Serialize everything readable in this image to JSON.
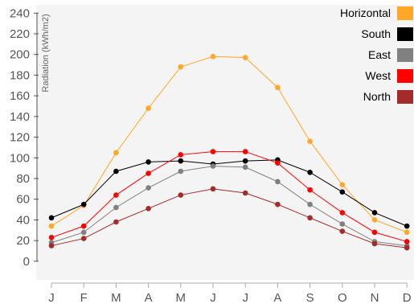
{
  "chart_data": {
    "type": "line",
    "ylabel": "Radiation (kWh/m2)",
    "xlabel": "",
    "categories": [
      "J",
      "F",
      "M",
      "A",
      "M",
      "J",
      "J",
      "A",
      "S",
      "O",
      "N",
      "D"
    ],
    "y_ticks": [
      0,
      20,
      40,
      60,
      80,
      100,
      120,
      140,
      160,
      180,
      200,
      220,
      240
    ],
    "ylim": [
      -18,
      248
    ],
    "grid": false,
    "legend_position": "top-right",
    "series": [
      {
        "name": "Horizontal",
        "color": "#FFA726",
        "values": [
          34,
          54,
          105,
          148,
          188,
          198,
          197,
          168,
          116,
          74,
          40,
          28
        ]
      },
      {
        "name": "South",
        "color": "#000000",
        "values": [
          42,
          55,
          87,
          96,
          97,
          94,
          97,
          98,
          86,
          67,
          47,
          34
        ]
      },
      {
        "name": "East",
        "color": "#808080",
        "values": [
          18,
          28,
          52,
          71,
          87,
          92,
          91,
          77,
          55,
          36,
          19,
          15
        ]
      },
      {
        "name": "West",
        "color": "#FF0000",
        "values": [
          23,
          34,
          64,
          85,
          103,
          106,
          106,
          95,
          69,
          47,
          28,
          19
        ]
      },
      {
        "name": "North",
        "color": "#A52A2A",
        "values": [
          15,
          22,
          38,
          51,
          64,
          70,
          66,
          55,
          42,
          29,
          17,
          13
        ]
      }
    ]
  }
}
